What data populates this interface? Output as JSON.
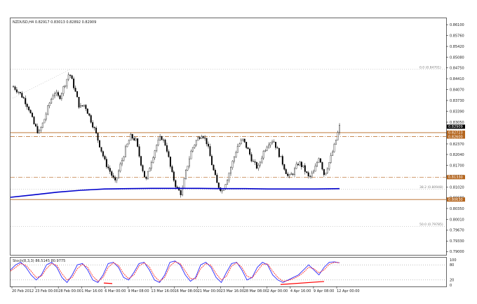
{
  "chart_data": {
    "type": "candlestick",
    "header": "NZDUSD,H4  0.82917 0.83013 0.82892 0.82909",
    "symbol": "NZDUSD",
    "timeframe": "H4",
    "ohlc_header": {
      "open": 0.82917,
      "high": 0.83013,
      "low": 0.82892,
      "close": 0.82909
    },
    "ylim": [
      0.789,
      0.863
    ],
    "y_ticks": [
      "0.86100",
      "0.85760",
      "0.85420",
      "0.85080",
      "0.84750",
      "0.84410",
      "0.84070",
      "0.83730",
      "0.83390",
      "0.83050",
      "0.82710",
      "0.82370",
      "0.82040",
      "0.81700",
      "0.81360",
      "0.81020",
      "0.80680",
      "0.80350",
      "0.80010",
      "0.79670",
      "0.79330",
      "0.79000"
    ],
    "y_tick_values": [
      0.861,
      0.8576,
      0.8542,
      0.8508,
      0.8475,
      0.8441,
      0.8407,
      0.8373,
      0.8339,
      0.8305,
      0.8271,
      0.8237,
      0.8204,
      0.817,
      0.8136,
      0.8102,
      0.8068,
      0.8035,
      0.8001,
      0.7967,
      0.7933,
      0.79
    ],
    "x_ticks": [
      "20 Feb 2012",
      "23 Feb 00:00",
      "28 Feb 00:00",
      "1 Mar 16:00",
      "6 Mar 00:00",
      "9 Mar 08:00",
      "13 Mar 16:00",
      "16 Mar 08:00",
      "21 Mar 00:00",
      "23 Mar 16:00",
      "28 Mar 08:00",
      "2 Apr 00:00",
      "4 Apr 16:00",
      "9 Apr 08:00",
      "12 Apr 00:00"
    ],
    "price_labels": [
      "0.82909",
      "0.82723",
      "0.82600",
      "0.81330",
      "0.80630"
    ],
    "horizontal_levels": [
      {
        "value": 0.82723,
        "color": "#b5651d",
        "style": "solid"
      },
      {
        "value": 0.826,
        "color": "#b5651d",
        "style": "dashdot"
      },
      {
        "value": 0.8133,
        "color": "#b5651d",
        "style": "dashdot"
      },
      {
        "value": 0.8063,
        "color": "#b5651d",
        "style": "solid"
      }
    ],
    "fibonacci": [
      {
        "label": "0.0",
        "price_label": "(0.84701)",
        "value": 0.84701
      },
      {
        "label": "38.2",
        "price_label": "(0.80948)",
        "value": 0.80948
      },
      {
        "label": "50.0",
        "price_label": "(0.79785)",
        "value": 0.79785
      }
    ],
    "moving_average": {
      "color": "#0000cc",
      "values": [
        0.807,
        0.8078,
        0.8086,
        0.8092,
        0.8096,
        0.8097,
        0.8098,
        0.8098,
        0.8098,
        0.8097,
        0.8097,
        0.8096,
        0.8096,
        0.8096,
        0.8097
      ]
    },
    "close_path": [
      0.8416,
      0.8401,
      0.838,
      0.835,
      0.83,
      0.827,
      0.831,
      0.836,
      0.84,
      0.838,
      0.842,
      0.846,
      0.841,
      0.835,
      0.836,
      0.832,
      0.828,
      0.823,
      0.818,
      0.815,
      0.8115,
      0.817,
      0.822,
      0.826,
      0.825,
      0.818,
      0.812,
      0.818,
      0.823,
      0.826,
      0.823,
      0.815,
      0.81,
      0.808,
      0.816,
      0.822,
      0.825,
      0.827,
      0.824,
      0.817,
      0.811,
      0.809,
      0.813,
      0.818,
      0.823,
      0.825,
      0.822,
      0.818,
      0.816,
      0.821,
      0.824,
      0.825,
      0.821,
      0.817,
      0.813,
      0.815,
      0.818,
      0.816,
      0.813,
      0.815,
      0.82,
      0.814,
      0.818,
      0.823,
      0.8291
    ],
    "stochastic": {
      "label": "Stoch(8,3,3) 86.5145 80.9775",
      "levels": [
        "100",
        "80",
        "20",
        "0"
      ],
      "main": [
        60,
        80,
        90,
        70,
        40,
        20,
        40,
        80,
        90,
        70,
        30,
        10,
        40,
        80,
        85,
        60,
        20,
        10,
        40,
        85,
        90,
        70,
        30,
        20,
        50,
        85,
        90,
        60,
        20,
        10,
        40,
        90,
        95,
        80,
        40,
        15,
        30,
        80,
        90,
        70,
        30,
        10,
        50,
        85,
        90,
        60,
        20,
        30,
        70,
        90,
        80,
        40,
        20,
        10,
        20,
        30,
        40,
        60,
        80,
        60,
        40,
        70,
        90,
        92,
        88
      ],
      "signal": [
        55,
        70,
        85,
        78,
        55,
        30,
        35,
        65,
        85,
        78,
        45,
        20,
        30,
        65,
        82,
        70,
        35,
        15,
        30,
        70,
        88,
        78,
        45,
        25,
        40,
        75,
        88,
        72,
        35,
        15,
        30,
        75,
        92,
        85,
        55,
        25,
        25,
        65,
        85,
        78,
        45,
        20,
        35,
        75,
        88,
        70,
        35,
        28,
        55,
        82,
        84,
        55,
        30,
        15,
        18,
        25,
        35,
        50,
        70,
        65,
        48,
        60,
        82,
        90,
        88
      ],
      "oversold_trendline": {
        "from": 5,
        "to": 28,
        "color": "#ff0000"
      }
    }
  }
}
